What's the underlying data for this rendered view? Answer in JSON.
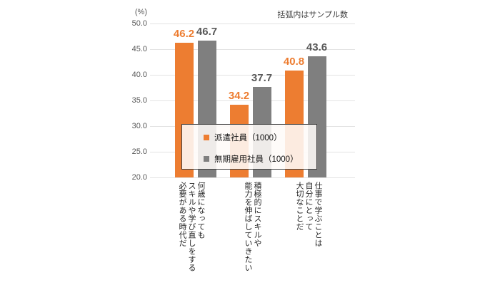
{
  "header_note": "括弧内はサンプル数",
  "y_axis_unit": "(%)",
  "legend": {
    "items": [
      {
        "label": "派遣社員（1000）",
        "color": "#ED7D31"
      },
      {
        "label": "無期雇用社員（1000）",
        "color": "#7F7F7F"
      }
    ]
  },
  "chart_data": {
    "type": "bar",
    "title": "",
    "note": "括弧内はサンプル数",
    "ylabel": "(%)",
    "ylim": [
      20.0,
      50.0
    ],
    "ytick_step": 5.0,
    "yticks": [
      "50.0",
      "45.0",
      "40.0",
      "35.0",
      "30.0",
      "25.0",
      "20.0"
    ],
    "grid": true,
    "legend_position": "center-overlay",
    "categories": [
      "何歳になってもスキルや学び直しをする必要がある時代だ",
      "積極的にスキルや能力を伸ばしていきたい",
      "仕事で学ぶことは自分にとって大切なことだ"
    ],
    "category_lines": [
      [
        "何歳になっても",
        "スキルや学び直しをする",
        "必要がある時代だ"
      ],
      [
        "積極的にスキルや",
        "能力を伸ばしていきたい"
      ],
      [
        "仕事で学ぶことは",
        "自分にとって",
        "大切なことだ"
      ]
    ],
    "series": [
      {
        "name": "派遣社員（1000）",
        "color": "#ED7D31",
        "label_color": "#ED7D31",
        "values": [
          46.2,
          34.2,
          40.8
        ]
      },
      {
        "name": "無期雇用社員（1000）",
        "color": "#7F7F7F",
        "label_color": "#595959",
        "values": [
          46.7,
          37.7,
          43.6
        ]
      }
    ]
  },
  "colors": {
    "background": "#FFFFFF",
    "gridline": "#E3E3E3",
    "tick_text": "#595959",
    "category_text": "#262626",
    "legend_border": "#404040"
  }
}
